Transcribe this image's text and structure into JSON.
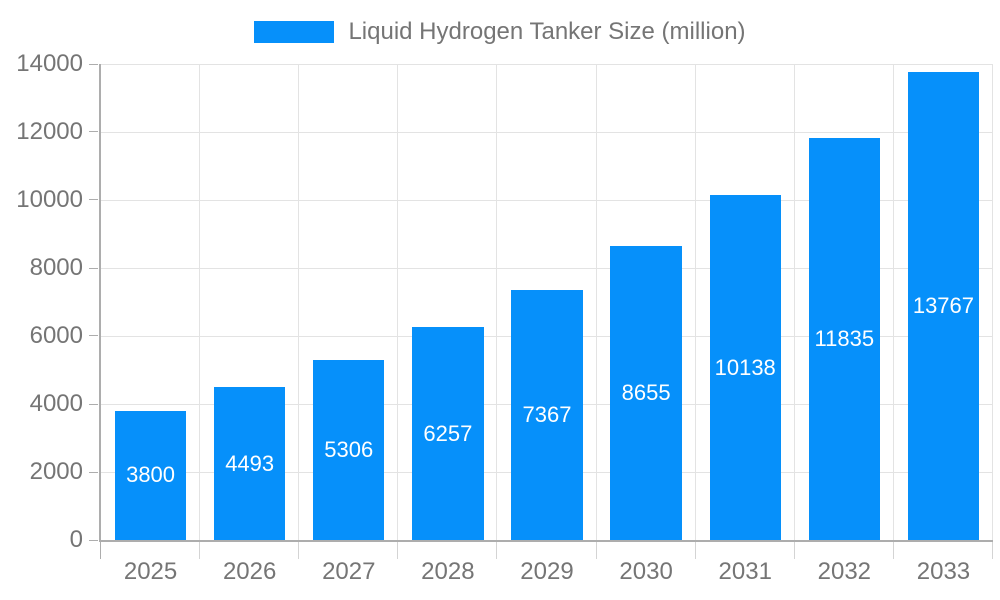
{
  "chart_data": {
    "type": "bar",
    "title": "Liquid Hydrogen Tanker Size (million)",
    "categories": [
      "2025",
      "2026",
      "2027",
      "2028",
      "2029",
      "2030",
      "2031",
      "2032",
      "2033"
    ],
    "values": [
      3800,
      4493,
      5306,
      6257,
      7367,
      8655,
      10138,
      11835,
      13767
    ],
    "xlabel": "",
    "ylabel": "",
    "ylim": [
      0,
      14000
    ],
    "ytick_step": 2000,
    "ytick_labels": [
      "0",
      "2000",
      "4000",
      "6000",
      "8000",
      "10000",
      "12000",
      "14000"
    ],
    "grid": "on",
    "legend_position": "top",
    "bar_labels_visible": true,
    "bar_label_position": "center-inside"
  },
  "colors": {
    "bar_fill": "#0690fa",
    "bar_label_text": "#ffffff",
    "axis_line": "#adadad",
    "gridline": "#e3e3e3",
    "tick_text": "#757575",
    "legend_text": "#757575",
    "background": "#ffffff"
  }
}
